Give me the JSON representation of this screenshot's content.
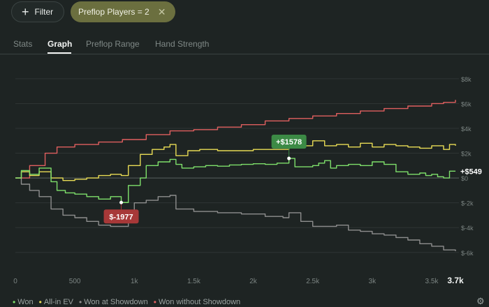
{
  "toolbar": {
    "filter_label": "Filter",
    "chip_label": "Preflop Players = 2",
    "chip_close": "✕"
  },
  "tabs": [
    {
      "label": "Stats"
    },
    {
      "label": "Graph",
      "active": true
    },
    {
      "label": "Preflop Range"
    },
    {
      "label": "Hand Strength"
    }
  ],
  "chart_data": {
    "type": "line",
    "x_ticks": [
      "0",
      "500",
      "1k",
      "1.5k",
      "2k",
      "2.5k",
      "3k",
      "3.5k"
    ],
    "x_end_label": "3.7k",
    "y_ticks": [
      "$8k",
      "$6k",
      "$4k",
      "$2k",
      "$0",
      "$-2k",
      "$-4k",
      "$-6k"
    ],
    "xlim": [
      0,
      3700
    ],
    "ylim": [
      -6800,
      8500
    ],
    "annotations": [
      {
        "label": "+$1578",
        "x": 2300,
        "y": 1578,
        "color": "#3c8a45"
      },
      {
        "label": "$-1977",
        "x": 890,
        "y": -1977,
        "color": "#a73838"
      }
    ],
    "end_value_label": "+$549",
    "series": [
      {
        "name": "Won",
        "color": "#7ee06b",
        "points": [
          [
            0,
            0
          ],
          [
            50,
            600
          ],
          [
            120,
            300
          ],
          [
            200,
            800
          ],
          [
            300,
            -300
          ],
          [
            350,
            -1000
          ],
          [
            420,
            -1200
          ],
          [
            500,
            -1300
          ],
          [
            600,
            -1500
          ],
          [
            700,
            -1700
          ],
          [
            800,
            -1500
          ],
          [
            890,
            -1977
          ],
          [
            950,
            -600
          ],
          [
            1050,
            0
          ],
          [
            1100,
            1000
          ],
          [
            1200,
            1300
          ],
          [
            1300,
            1500
          ],
          [
            1350,
            1100
          ],
          [
            1400,
            800
          ],
          [
            1500,
            900
          ],
          [
            1600,
            1000
          ],
          [
            1700,
            950
          ],
          [
            1800,
            1050
          ],
          [
            1900,
            1100
          ],
          [
            2000,
            1150
          ],
          [
            2100,
            1100
          ],
          [
            2200,
            1200
          ],
          [
            2300,
            1578
          ],
          [
            2350,
            900
          ],
          [
            2450,
            900
          ],
          [
            2500,
            1000
          ],
          [
            2550,
            1200
          ],
          [
            2600,
            1400
          ],
          [
            2650,
            800
          ],
          [
            2700,
            1000
          ],
          [
            2800,
            1100
          ],
          [
            2900,
            1000
          ],
          [
            3000,
            1300
          ],
          [
            3100,
            1100
          ],
          [
            3200,
            500
          ],
          [
            3300,
            300
          ],
          [
            3400,
            400
          ],
          [
            3450,
            200
          ],
          [
            3500,
            300
          ],
          [
            3550,
            100
          ],
          [
            3600,
            0
          ],
          [
            3650,
            549
          ],
          [
            3700,
            549
          ]
        ]
      },
      {
        "name": "All-in EV",
        "color": "#e9dc55",
        "points": [
          [
            0,
            0
          ],
          [
            50,
            500
          ],
          [
            120,
            200
          ],
          [
            200,
            500
          ],
          [
            300,
            0
          ],
          [
            400,
            -200
          ],
          [
            500,
            -100
          ],
          [
            600,
            0
          ],
          [
            700,
            200
          ],
          [
            800,
            300
          ],
          [
            890,
            200
          ],
          [
            950,
            1000
          ],
          [
            1050,
            1900
          ],
          [
            1150,
            2300
          ],
          [
            1250,
            2500
          ],
          [
            1300,
            2700
          ],
          [
            1350,
            1800
          ],
          [
            1450,
            2200
          ],
          [
            1550,
            2300
          ],
          [
            1700,
            2200
          ],
          [
            1850,
            2200
          ],
          [
            2000,
            2300
          ],
          [
            2150,
            2300
          ],
          [
            2300,
            2500
          ],
          [
            2400,
            2600
          ],
          [
            2500,
            3000
          ],
          [
            2600,
            2600
          ],
          [
            2700,
            2700
          ],
          [
            2800,
            2500
          ],
          [
            2900,
            2800
          ],
          [
            3000,
            2500
          ],
          [
            3100,
            2700
          ],
          [
            3200,
            2600
          ],
          [
            3300,
            2500
          ],
          [
            3400,
            2400
          ],
          [
            3500,
            2600
          ],
          [
            3600,
            2300
          ],
          [
            3650,
            2700
          ],
          [
            3700,
            2600
          ]
        ]
      },
      {
        "name": "Won at Showdown",
        "color": "#8e8e8e",
        "points": [
          [
            0,
            0
          ],
          [
            50,
            -500
          ],
          [
            120,
            -1000
          ],
          [
            200,
            -1500
          ],
          [
            300,
            -2500
          ],
          [
            400,
            -3000
          ],
          [
            500,
            -3200
          ],
          [
            600,
            -3500
          ],
          [
            700,
            -3800
          ],
          [
            800,
            -3900
          ],
          [
            890,
            -3900
          ],
          [
            950,
            -3000
          ],
          [
            1000,
            -2000
          ],
          [
            1100,
            -1800
          ],
          [
            1200,
            -1500
          ],
          [
            1300,
            -1400
          ],
          [
            1350,
            -2500
          ],
          [
            1500,
            -2700
          ],
          [
            1700,
            -2800
          ],
          [
            1900,
            -2900
          ],
          [
            2100,
            -3100
          ],
          [
            2250,
            -3200
          ],
          [
            2300,
            -2800
          ],
          [
            2400,
            -3500
          ],
          [
            2500,
            -3900
          ],
          [
            2600,
            -3900
          ],
          [
            2700,
            -3800
          ],
          [
            2800,
            -4200
          ],
          [
            2900,
            -4300
          ],
          [
            3000,
            -4500
          ],
          [
            3100,
            -4600
          ],
          [
            3200,
            -4800
          ],
          [
            3300,
            -5000
          ],
          [
            3400,
            -5300
          ],
          [
            3500,
            -5500
          ],
          [
            3600,
            -5800
          ],
          [
            3700,
            -5900
          ]
        ]
      },
      {
        "name": "Won without Showdown",
        "color": "#e05f5f",
        "points": [
          [
            0,
            0
          ],
          [
            120,
            1000
          ],
          [
            250,
            2000
          ],
          [
            350,
            2500
          ],
          [
            500,
            2700
          ],
          [
            700,
            2900
          ],
          [
            900,
            3100
          ],
          [
            1100,
            3500
          ],
          [
            1300,
            3800
          ],
          [
            1500,
            3900
          ],
          [
            1700,
            4100
          ],
          [
            1900,
            4300
          ],
          [
            2100,
            4600
          ],
          [
            2300,
            4800
          ],
          [
            2500,
            5000
          ],
          [
            2700,
            5200
          ],
          [
            2900,
            5400
          ],
          [
            3100,
            5600
          ],
          [
            3300,
            5800
          ],
          [
            3500,
            6000
          ],
          [
            3600,
            6100
          ],
          [
            3700,
            6300
          ]
        ]
      }
    ]
  }
}
